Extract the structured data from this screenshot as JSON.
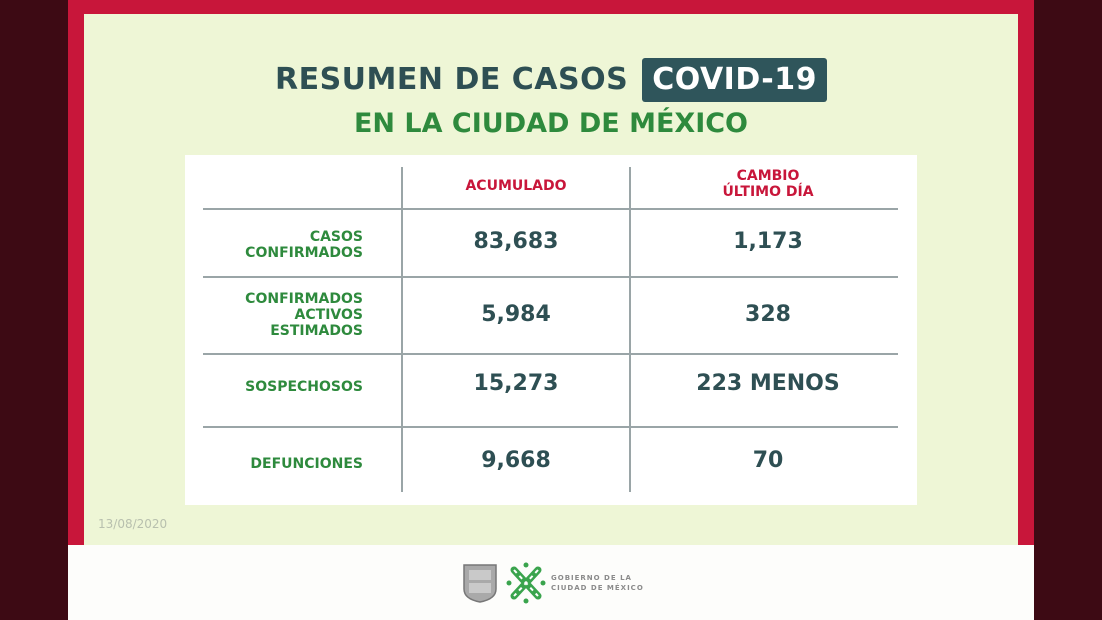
{
  "header": {
    "title": "RESUMEN DE CASOS",
    "badge": "COVID-19",
    "subtitle": "EN LA CIUDAD DE MÉXICO"
  },
  "table": {
    "columns": [
      "ACUMULADO",
      "CAMBIO",
      "ÚLTIMO DÍA"
    ],
    "rows": [
      {
        "label": [
          "CASOS",
          "CONFIRMADOS"
        ],
        "acumulado": "83,683",
        "cambio": "1,173"
      },
      {
        "label": [
          "CONFIRMADOS",
          "ACTIVOS",
          "ESTIMADOS"
        ],
        "acumulado": "5,984",
        "cambio": "328"
      },
      {
        "label": [
          "SOSPECHOSOS"
        ],
        "acumulado": "15,273",
        "cambio": "223 MENOS"
      },
      {
        "label": [
          "DEFUNCIONES"
        ],
        "acumulado": "9,668",
        "cambio": "70"
      }
    ]
  },
  "date": "13/08/2020",
  "footer": {
    "logo_line1": "GOBIERNO DE LA",
    "logo_line2": "CIUDAD DE MÉXICO"
  },
  "colors": {
    "frame": "#c8163a",
    "panel": "#eef6d6",
    "title": "#2e4f53",
    "green": "#2e8a3d"
  }
}
